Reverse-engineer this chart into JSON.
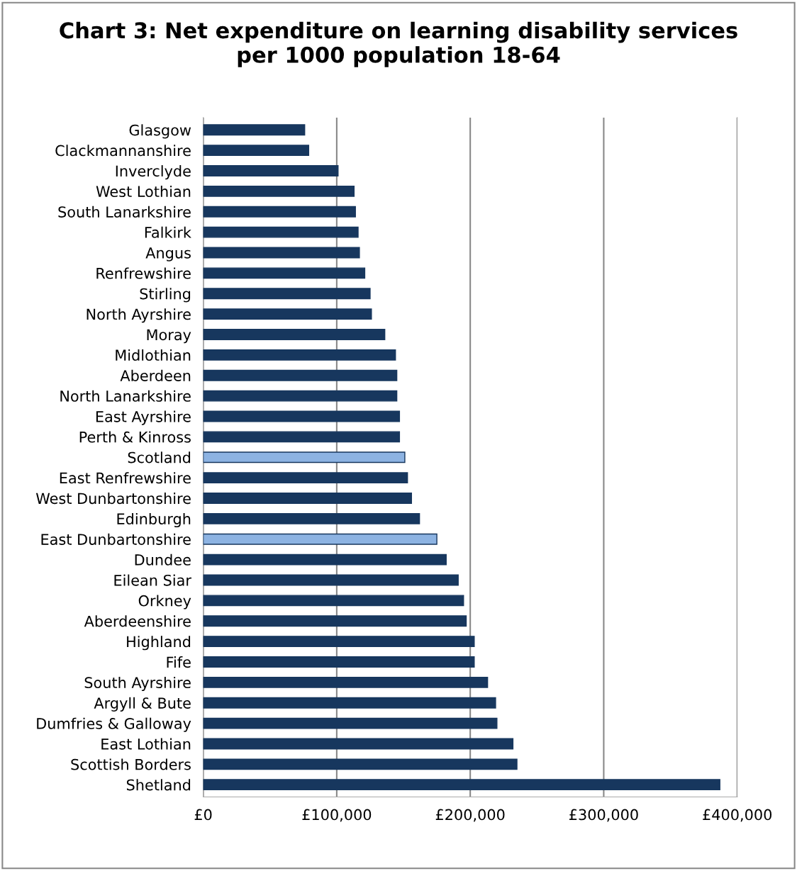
{
  "chart_data": {
    "type": "bar",
    "orientation": "horizontal",
    "title": "Chart 3: Net expenditure on learning disability services\nper 1000 population 18-64",
    "categories": [
      "Glasgow",
      "Clackmannanshire",
      "Inverclyde",
      "West Lothian",
      "South Lanarkshire",
      "Falkirk",
      "Angus",
      "Renfrewshire",
      "Stirling",
      "North Ayrshire",
      "Moray",
      "Midlothian",
      "Aberdeen",
      "North Lanarkshire",
      "East Ayrshire",
      "Perth & Kinross",
      "Scotland",
      "East Renfrewshire",
      "West Dunbartonshire",
      "Edinburgh",
      "East Dunbartonshire",
      "Dundee",
      "Eilean Siar",
      "Orkney",
      "Aberdeenshire",
      "Highland",
      "Fife",
      "South Ayrshire",
      "Argyll & Bute",
      "Dumfries & Galloway",
      "East Lothian",
      "Scottish Borders",
      "Shetland"
    ],
    "values": [
      76000,
      79000,
      101000,
      113000,
      114000,
      116000,
      117000,
      121000,
      125000,
      126000,
      136000,
      144000,
      145000,
      145000,
      147000,
      147000,
      151000,
      153000,
      156000,
      162000,
      175000,
      182000,
      191000,
      195000,
      197000,
      203000,
      203000,
      213000,
      219000,
      220000,
      232000,
      235000,
      387000
    ],
    "colors": [
      "#17375e",
      "#17375e",
      "#17375e",
      "#17375e",
      "#17375e",
      "#17375e",
      "#17375e",
      "#17375e",
      "#17375e",
      "#17375e",
      "#17375e",
      "#17375e",
      "#17375e",
      "#17375e",
      "#17375e",
      "#17375e",
      "#8db3e2",
      "#17375e",
      "#17375e",
      "#17375e",
      "#8db3e2",
      "#17375e",
      "#17375e",
      "#17375e",
      "#17375e",
      "#17375e",
      "#17375e",
      "#17375e",
      "#17375e",
      "#17375e",
      "#17375e",
      "#17375e",
      "#17375e"
    ],
    "xlim": [
      0,
      400000
    ],
    "xticks": [
      {
        "value": 0,
        "label": "£0"
      },
      {
        "value": 100000,
        "label": "£100,000"
      },
      {
        "value": 200000,
        "label": "£200,000"
      },
      {
        "value": 300000,
        "label": "£300,000"
      },
      {
        "value": 400000,
        "label": "£400,000"
      }
    ],
    "grid": "x",
    "legend": false
  }
}
